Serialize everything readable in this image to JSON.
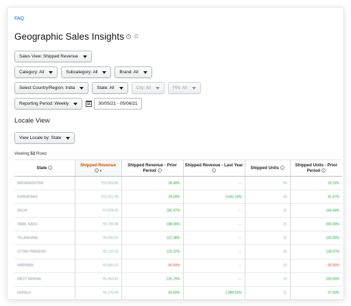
{
  "faq": "FAQ",
  "title": "Geographic Sales Insights",
  "icons": {
    "info": "info-icon",
    "star": "star-icon",
    "calendar": "calendar-icon",
    "caret": "chevron-down-icon"
  },
  "filters": {
    "sales_view": "Sales View: Shipped Revenue",
    "category": "Category: All",
    "subcategory": "Subcategory: All",
    "brand": "Brand: All",
    "country": "Select Country/Region: India",
    "state": "State: All",
    "city": "City: All",
    "pin": "PIN: All",
    "reporting_period": "Reporting Period: Weekly",
    "date_range": "30/05/21 - 05/06/21"
  },
  "locale": {
    "heading": "Locale View",
    "view_by": "View Locale by: State",
    "viewing_prefix": "Viewing",
    "row_count": "52",
    "viewing_suffix": "Rows"
  },
  "table": {
    "columns": [
      "State",
      "Shipped Revenue",
      "Shipped Revenue - Prior Period",
      "Shipped Revenue - Last Year",
      "Shipped Units",
      "Shipped Units - Prior Period"
    ],
    "rows": [
      {
        "state": "MAHARASHTRA",
        "rev": "₹20,854.86",
        "prior": "38.48%",
        "ly": "—",
        "units": "56",
        "uprior": "19.15%"
      },
      {
        "state": "KARNATAKA",
        "rev": "₹11,451.38",
        "prior": "29.50%",
        "ly": "2,041.19%",
        "units": "34",
        "uprior": "41.67%"
      },
      {
        "state": "DELHI",
        "rev": "₹7,878.02",
        "prior": "182.47%",
        "ly": "—",
        "units": "22",
        "uprior": "144.44%"
      },
      {
        "state": "TAMIL NADU",
        "rev": "₹6,705.98",
        "prior": "188.06%",
        "ly": "—",
        "units": "21",
        "uprior": "200.00%"
      },
      {
        "state": "TELANGANA",
        "rev": "₹6,500.92",
        "prior": "121.38%",
        "ly": "—",
        "units": "22",
        "uprior": "120.00%"
      },
      {
        "state": "UTTAR PRADESH",
        "rev": "₹5,122.02",
        "prior": "122.37%",
        "ly": "—",
        "units": "16",
        "uprior": "128.57%"
      },
      {
        "state": "HARYANA",
        "rev": "₹5,845.22",
        "prior": "-40.59%",
        "ly": "—",
        "units": "15",
        "uprior": "-35.00%"
      },
      {
        "state": "WEST BENGAL",
        "rev": "₹5,464.42",
        "prior": "125.75%",
        "ly": "—",
        "units": "10",
        "uprior": "150.00%"
      },
      {
        "state": "KERALA",
        "rev": "₹5,175.44",
        "prior": "56.65%",
        "ly": "1,089.53%",
        "units": "11",
        "uprior": "37.50%"
      }
    ]
  }
}
